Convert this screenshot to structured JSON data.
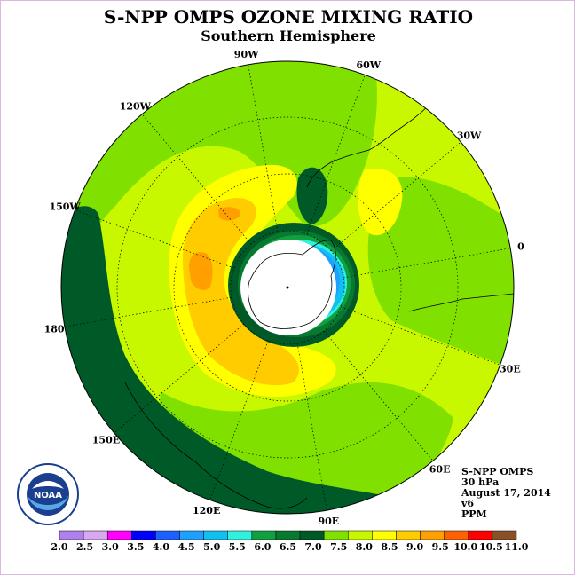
{
  "header": {
    "title": "S-NPP OMPS OZONE MIXING RATIO",
    "subtitle": "Southern Hemisphere"
  },
  "map": {
    "projection": "south-polar-stereographic",
    "longitude_labels": [
      "90W",
      "60W",
      "30W",
      "0",
      "30E",
      "60E",
      "90E",
      "120E",
      "150E",
      "180",
      "150W",
      "120W"
    ]
  },
  "info": {
    "instrument": "S-NPP OMPS",
    "level": "30 hPa",
    "date": "August 17, 2014",
    "version": "v6",
    "units": "PPM"
  },
  "logo": {
    "text": "NOAA",
    "ring_text": "NATIONAL OCEANIC AND ATMOSPHERIC ADMINISTRATION · U.S. DEPARTMENT OF COMMERCE"
  },
  "colorbar": {
    "tick_labels": [
      "2.0",
      "2.5",
      "3.0",
      "3.5",
      "4.0",
      "4.5",
      "5.0",
      "5.5",
      "6.0",
      "6.5",
      "7.0",
      "7.5",
      "8.0",
      "8.5",
      "9.0",
      "9.5",
      "10.0",
      "10.5",
      "11.0"
    ],
    "colors": [
      "#b080ee",
      "#d8a8f0",
      "#ff00ff",
      "#0000ff",
      "#1e60ff",
      "#1ea0ff",
      "#10c0f0",
      "#30f0e0",
      "#10a040",
      "#087a30",
      "#005a28",
      "#80e000",
      "#c8f800",
      "#ffff00",
      "#ffcc00",
      "#ffa000",
      "#ff6000",
      "#ff0000",
      "#8a5028"
    ]
  },
  "colors": {
    "c70": "#005a28",
    "c65": "#087a30",
    "c60": "#10a040",
    "c55": "#30f0e0",
    "c50": "#10c0f0",
    "c45": "#1ea0ff",
    "c75": "#80e000",
    "c80": "#c8f800",
    "c85": "#ffff00",
    "c90": "#ffcc00",
    "c95": "#ffa000"
  }
}
